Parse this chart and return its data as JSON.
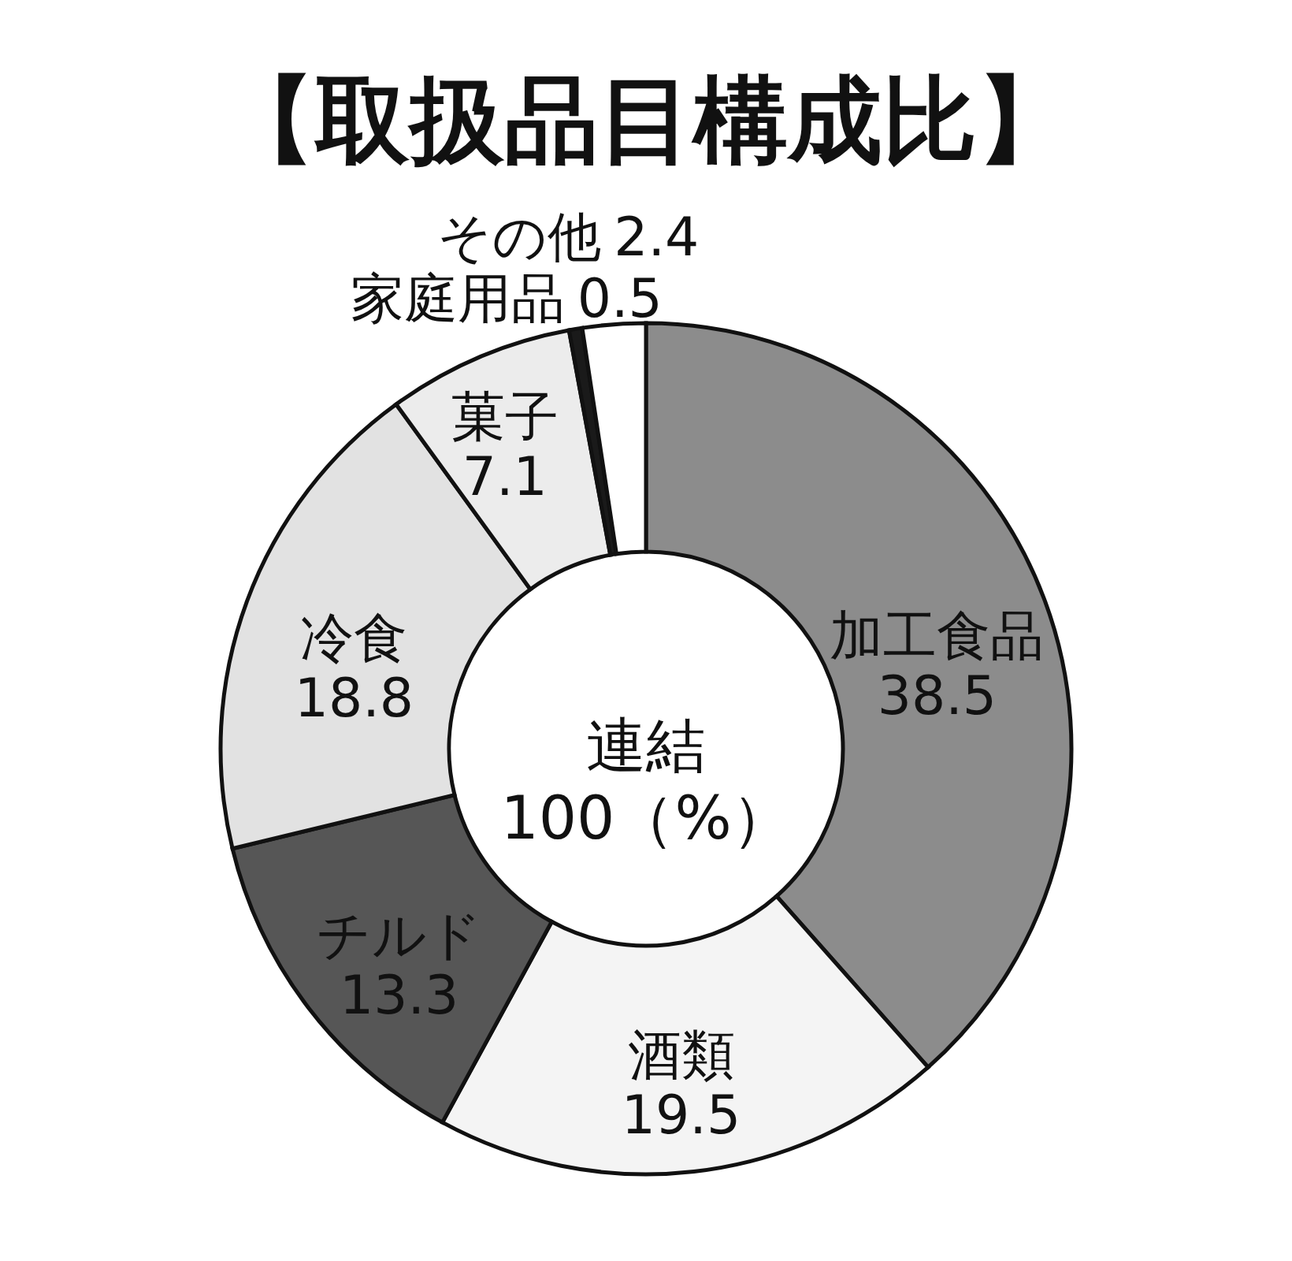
{
  "chart_data": {
    "type": "donut",
    "title": "【取扱品目構成比】",
    "categories": [
      "加工食品",
      "酒類",
      "チルド",
      "冷食",
      "菓子",
      "家庭用品",
      "その他"
    ],
    "values": [
      38.5,
      19.5,
      13.3,
      18.8,
      7.1,
      0.5,
      2.4
    ],
    "colors": [
      "#8c8c8c",
      "#f4f4f4",
      "#565656",
      "#e2e2e2",
      "#ececec",
      "#1a1a1a",
      "#ffffff"
    ],
    "data_labels": true,
    "annotations": [
      "連結\n100（%）"
    ]
  }
}
